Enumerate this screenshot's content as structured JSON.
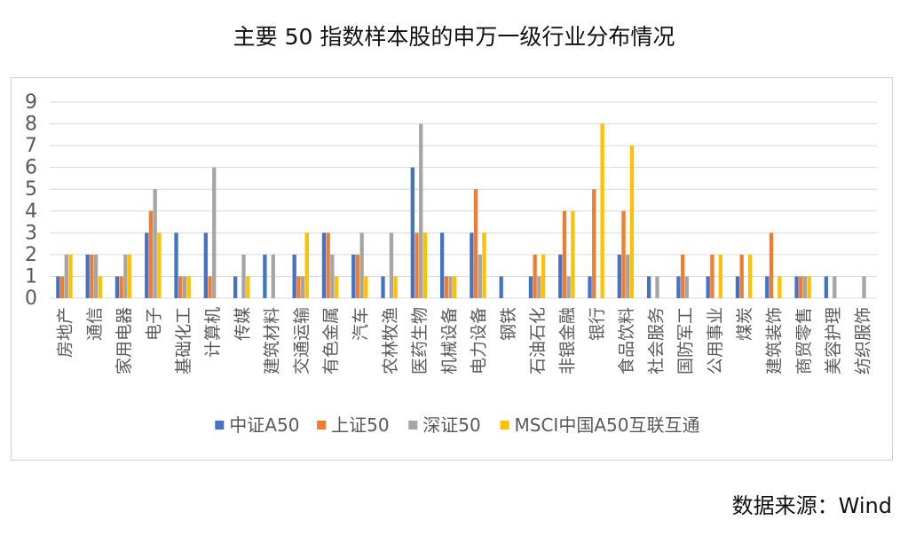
{
  "title": "主要 50 指数样本股的申万一级行业分布情况",
  "source": "数据来源：Wind",
  "chart_data": {
    "type": "bar",
    "ylim": [
      0,
      9
    ],
    "yticks": [
      0,
      1,
      2,
      3,
      4,
      5,
      6,
      7,
      8,
      9
    ],
    "grid": true,
    "legend_position": "bottom",
    "categories": [
      "房地产",
      "通信",
      "家用电器",
      "电子",
      "基础化工",
      "计算机",
      "传媒",
      "建筑材料",
      "交通运输",
      "有色金属",
      "汽车",
      "农林牧渔",
      "医药生物",
      "机械设备",
      "电力设备",
      "钢铁",
      "石油石化",
      "非银金融",
      "银行",
      "食品饮料",
      "社会服务",
      "国防军工",
      "公用事业",
      "煤炭",
      "建筑装饰",
      "商贸零售",
      "美容护理",
      "纺织服饰"
    ],
    "series": [
      {
        "name": "中证A50",
        "color": "#4472C4",
        "values": [
          1,
          2,
          1,
          3,
          3,
          3,
          1,
          2,
          2,
          3,
          2,
          1,
          6,
          3,
          3,
          1,
          1,
          2,
          1,
          2,
          1,
          1,
          1,
          1,
          1,
          1,
          1,
          0
        ]
      },
      {
        "name": "上证50",
        "color": "#ED7D31",
        "values": [
          1,
          2,
          1,
          4,
          1,
          1,
          0,
          0,
          1,
          3,
          2,
          0,
          3,
          1,
          5,
          0,
          2,
          4,
          5,
          4,
          0,
          2,
          2,
          2,
          3,
          1,
          0,
          0
        ]
      },
      {
        "name": "深证50",
        "color": "#A5A5A5",
        "values": [
          2,
          2,
          2,
          5,
          1,
          6,
          2,
          2,
          1,
          2,
          3,
          3,
          8,
          1,
          2,
          0,
          1,
          1,
          0,
          2,
          1,
          1,
          0,
          0,
          0,
          1,
          1,
          1
        ]
      },
      {
        "name": "MSCI中国A50互联互通",
        "color": "#FFC000",
        "values": [
          2,
          1,
          2,
          3,
          1,
          0,
          1,
          0,
          3,
          1,
          1,
          1,
          3,
          1,
          3,
          0,
          2,
          4,
          8,
          7,
          0,
          0,
          2,
          2,
          1,
          1,
          0,
          0
        ]
      }
    ]
  }
}
